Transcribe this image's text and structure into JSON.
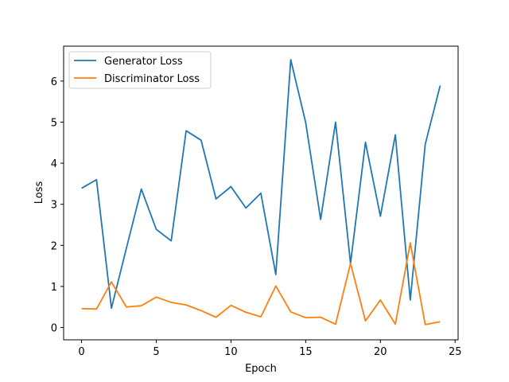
{
  "chart_data": {
    "type": "line",
    "xlabel": "Epoch",
    "ylabel": "Loss",
    "xlim": [
      -1.2,
      25.2
    ],
    "ylim": [
      -0.3,
      6.85
    ],
    "xticks": [
      0,
      5,
      10,
      15,
      20,
      25
    ],
    "yticks": [
      0,
      1,
      2,
      3,
      4,
      5,
      6
    ],
    "legend_position": "top-left",
    "grid": false,
    "x": [
      0,
      1,
      2,
      3,
      4,
      5,
      6,
      7,
      8,
      9,
      10,
      11,
      12,
      13,
      14,
      15,
      16,
      17,
      18,
      19,
      20,
      21,
      22,
      23,
      24
    ],
    "series": [
      {
        "name": "Generator Loss",
        "color": "#1f77b4",
        "values": [
          3.39,
          3.6,
          0.47,
          1.93,
          3.37,
          2.39,
          2.11,
          4.79,
          4.56,
          3.13,
          3.43,
          2.91,
          3.27,
          1.29,
          6.52,
          4.99,
          2.63,
          5.0,
          1.56,
          4.51,
          2.71,
          4.69,
          0.67,
          4.46,
          5.89
        ]
      },
      {
        "name": "Discriminator Loss",
        "color": "#ff7f0e",
        "values": [
          0.46,
          0.45,
          1.11,
          0.5,
          0.53,
          0.74,
          0.61,
          0.55,
          0.41,
          0.25,
          0.54,
          0.37,
          0.26,
          1.01,
          0.38,
          0.24,
          0.25,
          0.08,
          1.56,
          0.16,
          0.67,
          0.08,
          2.06,
          0.07,
          0.14
        ]
      }
    ]
  }
}
